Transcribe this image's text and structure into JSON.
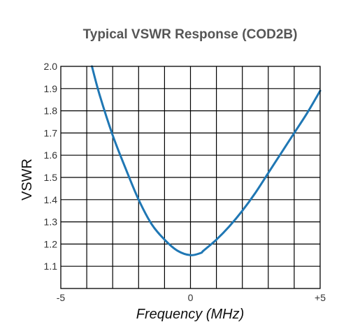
{
  "chart_data": {
    "type": "line",
    "title": "Typical VSWR Response (COD2B)",
    "xlabel": "Frequency (MHz)",
    "ylabel": "VSWR",
    "xlim": [
      -5,
      5
    ],
    "ylim": [
      1.0,
      2.0
    ],
    "grid": true,
    "x_ticks": [
      -5,
      0,
      5
    ],
    "x_tick_labels": [
      "-5",
      "0",
      "+5"
    ],
    "y_ticks": [
      1.1,
      1.2,
      1.3,
      1.4,
      1.5,
      1.6,
      1.7,
      1.8,
      1.9,
      2.0
    ],
    "y_tick_labels": [
      "1.1",
      "1.2",
      "1.3",
      "1.4",
      "1.5",
      "1.6",
      "1.7",
      "1.8",
      "1.9",
      "2.0"
    ],
    "x_grid_count": 10,
    "y_grid_count": 10,
    "series": [
      {
        "color": "#1f77b4",
        "x": [
          -3.8,
          -3.5,
          -3.0,
          -2.5,
          -2.0,
          -1.5,
          -1.0,
          -0.5,
          0.0,
          0.4,
          0.5,
          1.0,
          1.5,
          2.0,
          2.5,
          3.0,
          3.5,
          4.0,
          4.5,
          5.0
        ],
        "y": [
          2.0,
          1.87,
          1.69,
          1.54,
          1.4,
          1.29,
          1.22,
          1.17,
          1.15,
          1.16,
          1.17,
          1.22,
          1.28,
          1.35,
          1.43,
          1.52,
          1.61,
          1.7,
          1.79,
          1.89
        ]
      }
    ]
  }
}
